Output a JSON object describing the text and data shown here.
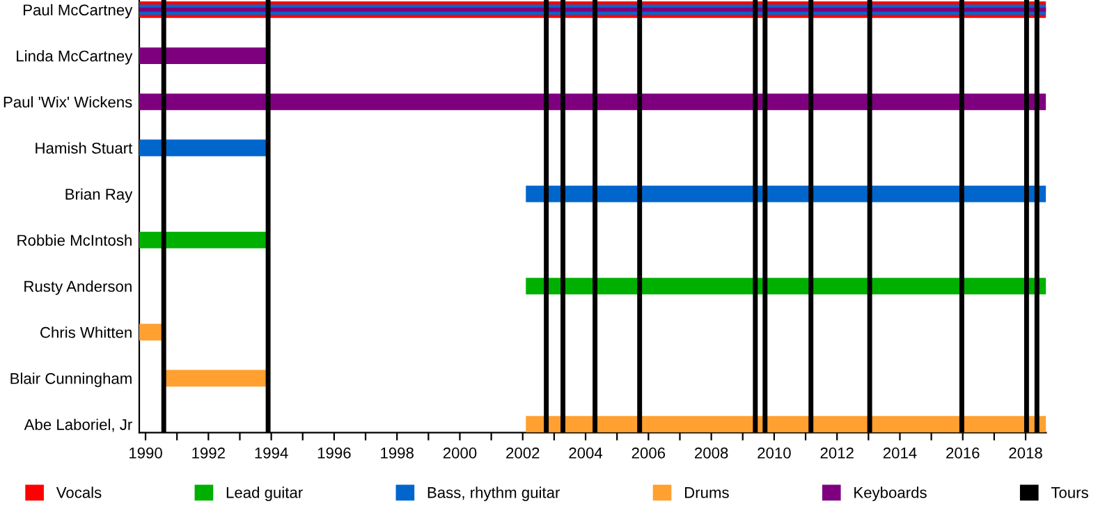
{
  "chart_data": {
    "type": "bar",
    "orientation": "horizontal",
    "categories": [
      "Paul McCartney",
      "Linda McCartney",
      "Paul 'Wix' Wickens",
      "Hamish Stuart",
      "Brian Ray",
      "Robbie McIntosh",
      "Rusty Anderson",
      "Chris Whitten",
      "Blair Cunningham",
      "Abe Laboriel, Jr"
    ],
    "series": [
      {
        "name": "Vocals",
        "color": "#ff0000",
        "base": [
          1989.8,
          null,
          null,
          null,
          null,
          null,
          null,
          null,
          null,
          null
        ],
        "values": [
          28.85,
          null,
          null,
          null,
          null,
          null,
          null,
          null,
          null,
          null
        ]
      },
      {
        "name": "Lead guitar",
        "color": "#00b000",
        "base": [
          null,
          null,
          null,
          null,
          null,
          1989.8,
          2002.1,
          null,
          null,
          null
        ],
        "values": [
          null,
          null,
          null,
          null,
          null,
          4.15,
          16.55,
          null,
          null,
          null
        ]
      },
      {
        "name": "Bass, rhythm guitar",
        "color": "#0066cc",
        "base": [
          1989.8,
          null,
          null,
          1989.8,
          2002.1,
          null,
          null,
          null,
          null,
          null
        ],
        "values": [
          28.85,
          null,
          null,
          4.15,
          16.55,
          null,
          null,
          null,
          null,
          null
        ]
      },
      {
        "name": "Drums",
        "color": "#ffa030",
        "base": [
          null,
          null,
          null,
          null,
          null,
          null,
          null,
          1989.8,
          1990.58,
          2002.1
        ],
        "values": [
          null,
          null,
          null,
          null,
          null,
          null,
          null,
          0.8,
          3.37,
          16.55
        ]
      },
      {
        "name": "Keyboards",
        "color": "#7f007f",
        "base": [
          1989.8,
          1989.8,
          1989.8,
          null,
          null,
          null,
          null,
          null,
          null,
          null
        ],
        "values": [
          28.85,
          4.15,
          28.85,
          null,
          null,
          null,
          null,
          null,
          null,
          null
        ]
      }
    ],
    "ref_lines": [
      {
        "axis": "x",
        "value": 1990.58,
        "label": "Tours",
        "color": "#000000"
      },
      {
        "axis": "x",
        "value": 1993.9,
        "label": null,
        "color": "#000000"
      },
      {
        "axis": "x",
        "value": 2002.75,
        "label": null,
        "color": "#000000"
      },
      {
        "axis": "x",
        "value": 2003.28,
        "label": null,
        "color": "#000000"
      },
      {
        "axis": "x",
        "value": 2004.3,
        "label": null,
        "color": "#000000"
      },
      {
        "axis": "x",
        "value": 2005.72,
        "label": null,
        "color": "#000000"
      },
      {
        "axis": "x",
        "value": 2009.4,
        "label": null,
        "color": "#000000"
      },
      {
        "axis": "x",
        "value": 2009.71,
        "label": null,
        "color": "#000000"
      },
      {
        "axis": "x",
        "value": 2011.17,
        "label": null,
        "color": "#000000"
      },
      {
        "axis": "x",
        "value": 2013.04,
        "label": null,
        "color": "#000000"
      },
      {
        "axis": "x",
        "value": 2015.97,
        "label": null,
        "color": "#000000"
      },
      {
        "axis": "x",
        "value": 2018.03,
        "label": null,
        "color": "#000000"
      },
      {
        "axis": "x",
        "value": 2018.36,
        "label": null,
        "color": "#000000"
      }
    ],
    "xlim": [
      1989.8,
      2018.65
    ],
    "xticks": [
      1990,
      {
        "value": 1991,
        "label": null
      },
      1992,
      {
        "value": 1993,
        "label": null
      },
      1994,
      {
        "value": 1995,
        "label": null
      },
      1996,
      {
        "value": 1997,
        "label": null
      },
      1998,
      {
        "value": 1999,
        "label": null
      },
      2000,
      {
        "value": 2001,
        "label": null
      },
      2002,
      {
        "value": 2003,
        "label": null
      },
      2004,
      {
        "value": 2005,
        "label": null
      },
      2006,
      {
        "value": 2007,
        "label": null
      },
      2008,
      {
        "value": 2009,
        "label": null
      },
      2010,
      {
        "value": 2011,
        "label": null
      },
      2012,
      {
        "value": 2013,
        "label": null
      },
      2014,
      {
        "value": 2015,
        "label": null
      },
      2016,
      {
        "value": 2017,
        "label": null
      },
      2018
    ],
    "grid": false,
    "legend": "bottom"
  }
}
